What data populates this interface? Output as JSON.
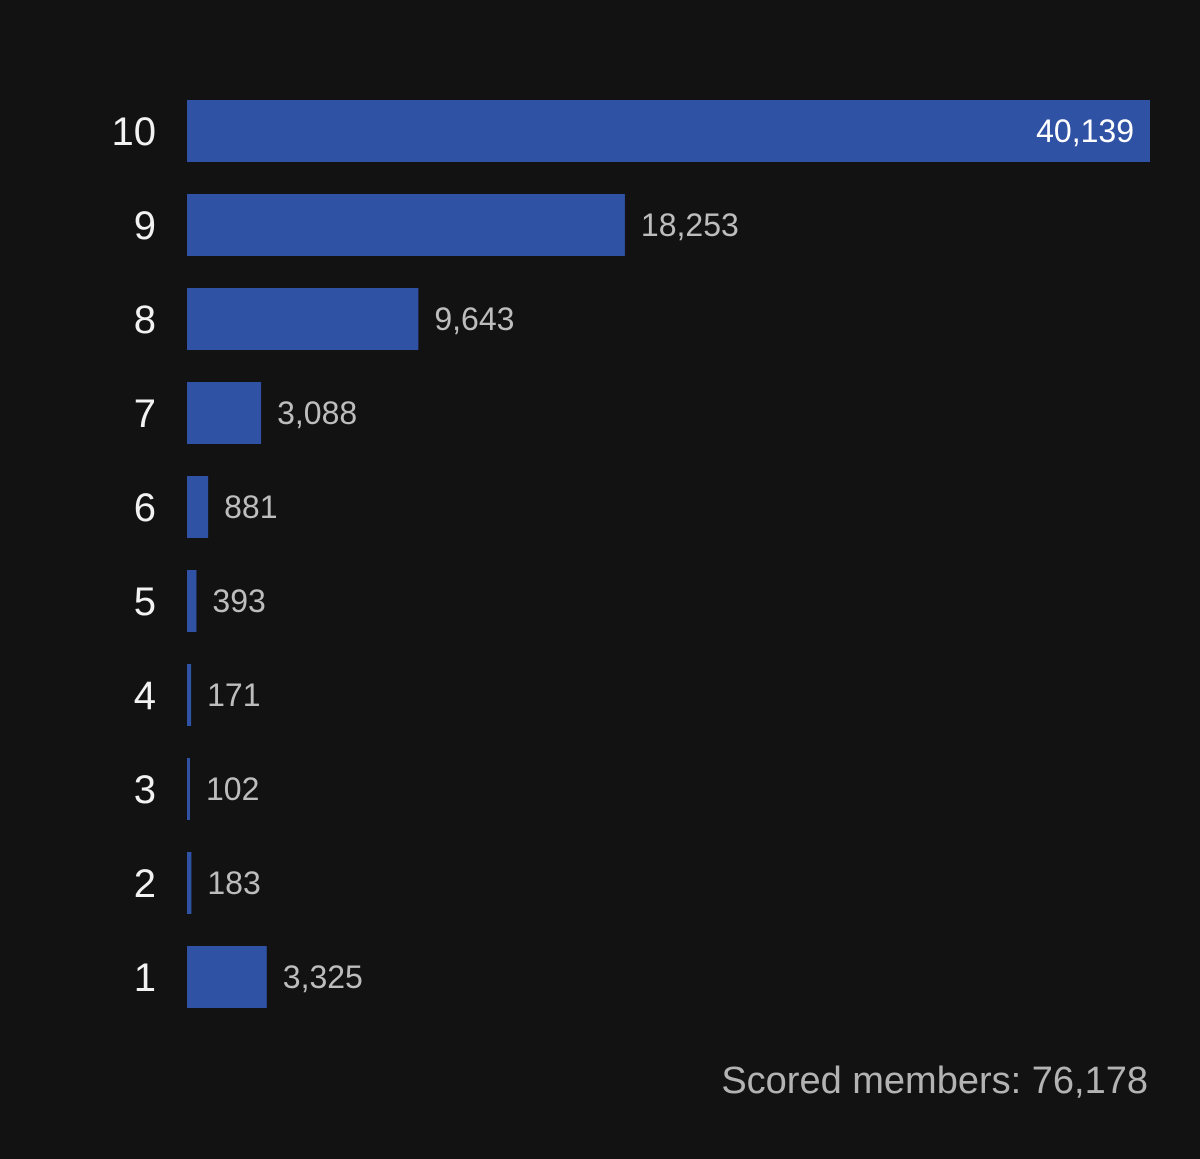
{
  "chart_data": {
    "type": "bar",
    "orientation": "horizontal",
    "categories": [
      "10",
      "9",
      "8",
      "7",
      "6",
      "5",
      "4",
      "3",
      "2",
      "1"
    ],
    "values": [
      40139,
      18253,
      9643,
      3088,
      881,
      393,
      171,
      102,
      183,
      3325
    ],
    "value_labels": [
      "40,139",
      "18,253",
      "9,643",
      "3,088",
      "881",
      "393",
      "171",
      "102",
      "183",
      "3,325"
    ],
    "bar_color": "#2f52a5",
    "background_color": "#121213",
    "grid": false
  },
  "footer": {
    "label": "Scored members:",
    "value": "76,178"
  }
}
